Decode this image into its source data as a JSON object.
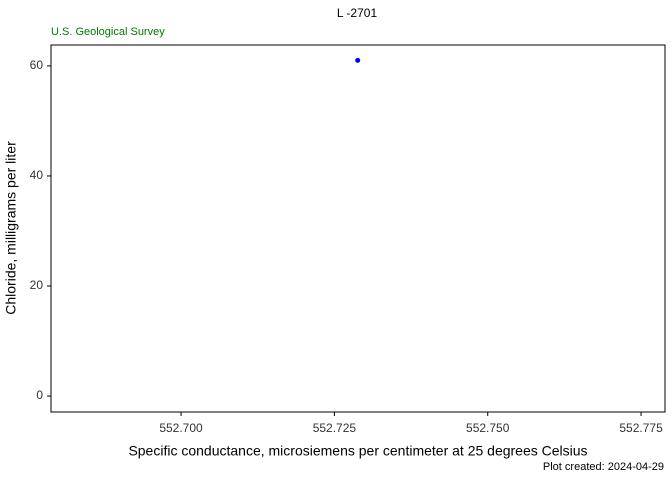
{
  "chart_data": {
    "type": "scatter",
    "title": "L  -2701",
    "agency": "U.S. Geological Survey",
    "x_label": "Specific conductance, microsiemens per centimeter at 25 degrees Celsius",
    "y_label": "Chloride, milligrams per liter",
    "footer": "Plot created: 2024-04-29",
    "series": [
      {
        "color": "#0000ff",
        "x": [
          552.7288
        ],
        "values": [
          61
        ]
      }
    ],
    "xlim": [
      552.6788,
      552.7789
    ],
    "xticks": [
      {
        "value": 552.7,
        "label": "552.700"
      },
      {
        "value": 552.725,
        "label": "552.725"
      },
      {
        "value": 552.75,
        "label": "552.750"
      },
      {
        "value": 552.775,
        "label": "552.775"
      }
    ],
    "ylim": [
      -2.9,
      63.8
    ],
    "yticks": [
      0,
      20,
      40,
      60
    ],
    "grid": false
  }
}
